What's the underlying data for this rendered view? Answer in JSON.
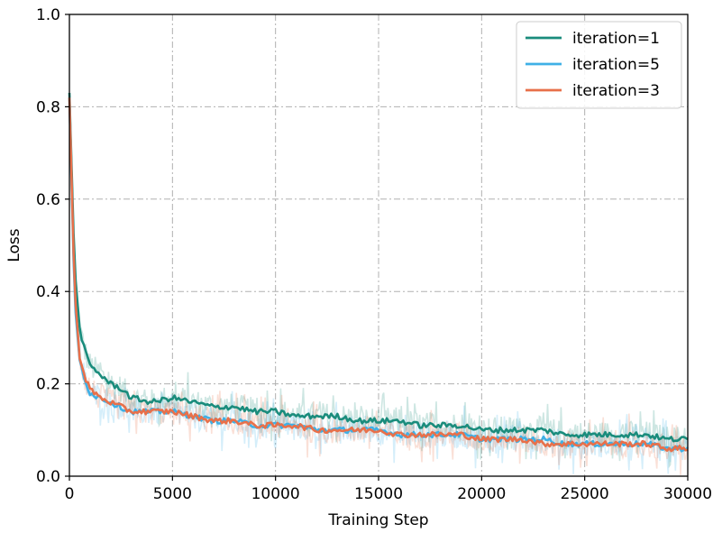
{
  "chart_data": {
    "type": "line",
    "xlabel": "Training Step",
    "ylabel": "Loss",
    "xlim": [
      0,
      30000
    ],
    "ylim": [
      0.0,
      1.0
    ],
    "xticks": [
      0,
      5000,
      10000,
      15000,
      20000,
      25000,
      30000
    ],
    "xtick_labels": [
      "0",
      "5000",
      "10000",
      "15000",
      "20000",
      "25000",
      "30000"
    ],
    "yticks": [
      0.0,
      0.2,
      0.4,
      0.6,
      0.8,
      1.0
    ],
    "ytick_labels": [
      "0.0",
      "0.2",
      "0.4",
      "0.6",
      "0.8",
      "1.0"
    ],
    "grid": true,
    "legend_position": "top-right",
    "x": [
      0,
      250,
      500,
      750,
      1000,
      1500,
      2000,
      2500,
      3000,
      4000,
      5000,
      6000,
      7000,
      8000,
      9000,
      10000,
      11000,
      12000,
      13000,
      14000,
      15000,
      16000,
      17000,
      18000,
      19000,
      20000,
      21000,
      22000,
      23000,
      24000,
      25000,
      26000,
      27000,
      28000,
      29000,
      30000
    ],
    "series": [
      {
        "name": "iteration=1",
        "color": "#1a8c7c",
        "values": [
          0.83,
          0.45,
          0.32,
          0.27,
          0.24,
          0.22,
          0.2,
          0.19,
          0.17,
          0.16,
          0.17,
          0.16,
          0.15,
          0.15,
          0.14,
          0.14,
          0.13,
          0.13,
          0.13,
          0.12,
          0.12,
          0.12,
          0.11,
          0.11,
          0.11,
          0.1,
          0.1,
          0.1,
          0.1,
          0.09,
          0.09,
          0.09,
          0.09,
          0.09,
          0.08,
          0.08
        ]
      },
      {
        "name": "iteration=5",
        "color": "#3fb0e6",
        "values": [
          0.82,
          0.38,
          0.25,
          0.21,
          0.18,
          0.17,
          0.16,
          0.15,
          0.14,
          0.14,
          0.14,
          0.13,
          0.12,
          0.12,
          0.11,
          0.11,
          0.11,
          0.1,
          0.1,
          0.1,
          0.1,
          0.09,
          0.09,
          0.09,
          0.09,
          0.08,
          0.08,
          0.08,
          0.08,
          0.07,
          0.07,
          0.07,
          0.07,
          0.07,
          0.06,
          0.06
        ]
      },
      {
        "name": "iteration=3",
        "color": "#e8704a",
        "values": [
          0.82,
          0.4,
          0.26,
          0.21,
          0.19,
          0.17,
          0.16,
          0.15,
          0.14,
          0.14,
          0.14,
          0.13,
          0.12,
          0.12,
          0.11,
          0.11,
          0.11,
          0.1,
          0.1,
          0.1,
          0.1,
          0.09,
          0.09,
          0.09,
          0.09,
          0.08,
          0.08,
          0.08,
          0.07,
          0.07,
          0.07,
          0.07,
          0.07,
          0.07,
          0.06,
          0.06
        ]
      }
    ],
    "noise_amplitude": 0.03
  }
}
